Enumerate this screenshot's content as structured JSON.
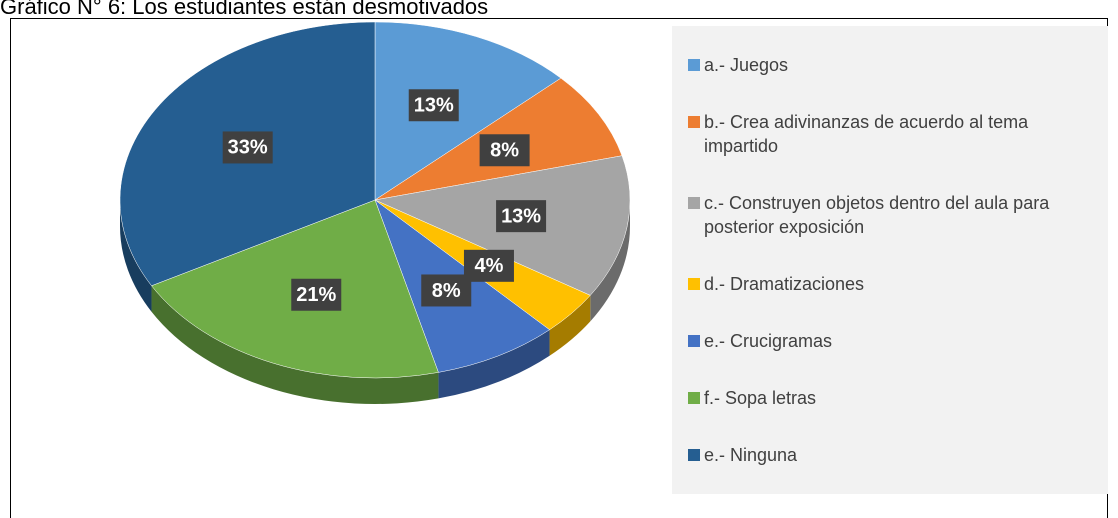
{
  "chart_data": {
    "type": "pie",
    "title": "Gráfico N° 6: Los estudiantes están desmotivados",
    "categories": [
      "a.- Juegos",
      "b.- Crea adivinanzas de acuerdo al tema impartido",
      "c.- Construyen objetos dentro del aula para posterior exposición",
      "d.- Dramatizaciones",
      "e.- Crucigramas",
      "f.- Sopa letras",
      "e.- Ninguna"
    ],
    "values": [
      13,
      8,
      13,
      4,
      8,
      21,
      33
    ],
    "value_labels": [
      "13%",
      "8%",
      "13%",
      "4%",
      "8%",
      "21%",
      "33%"
    ],
    "colors": [
      "#5b9bd5",
      "#ed7d31",
      "#a5a5a5",
      "#ffc000",
      "#4472c4",
      "#70ad47",
      "#255e91"
    ],
    "legend": "right"
  }
}
